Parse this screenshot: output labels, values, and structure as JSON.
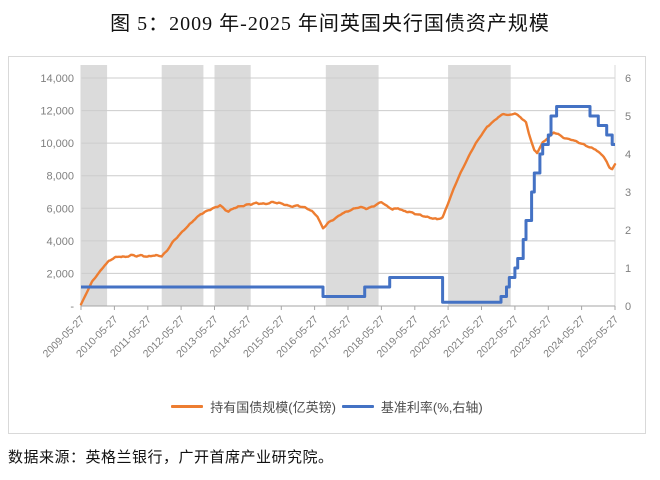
{
  "title": "图 5：2009 年-2025 年间英国央行国债资产规模",
  "source_note": "数据来源：英格兰银行，广开首席产业研究院。",
  "chart_data": {
    "type": "line",
    "title": "图 5：2009 年-2025 年间英国央行国债资产规模",
    "x_axis": {
      "unit": "months since 2009-05",
      "months_total": 192,
      "tick_every_months": 12,
      "labels": [
        "2009-05-27",
        "2010-05-27",
        "2011-05-27",
        "2012-05-27",
        "2013-05-27",
        "2014-05-27",
        "2015-05-27",
        "2016-05-27",
        "2017-05-27",
        "2018-05-27",
        "2019-05-27",
        "2020-05-27",
        "2021-05-27",
        "2022-05-27",
        "2023-05-27",
        "2024-05-27",
        "2025-05-27"
      ]
    },
    "left_axis": {
      "min": 0,
      "max": 14000,
      "major": 2000,
      "tick_labels": [
        "-",
        "2,000",
        "4,000",
        "6,000",
        "8,000",
        "10,000",
        "12,000",
        "14,000"
      ]
    },
    "right_axis": {
      "min": 0,
      "max": 6,
      "major": 1,
      "tick_labels": [
        "0",
        "1",
        "2",
        "3",
        "4",
        "5",
        "6"
      ]
    },
    "legend_position": "bottom",
    "grid": true,
    "legend": [
      {
        "label": "持有国债规模(亿英镑)",
        "color": "#ED7D31"
      },
      {
        "label": "基准利率(%,右轴)",
        "color": "#4472C4"
      }
    ],
    "shaded_bands_months": [
      [
        0,
        9.4
      ],
      [
        29,
        44
      ],
      [
        48,
        61
      ],
      [
        88,
        107
      ],
      [
        132,
        154.5
      ]
    ],
    "series": [
      {
        "name": "持有国债规模(亿英镑)",
        "axis": "left",
        "color": "#ED7D31",
        "style": "wiggly-line",
        "points": [
          [
            0,
            100
          ],
          [
            2,
            800
          ],
          [
            4,
            1500
          ],
          [
            6,
            1950
          ],
          [
            8,
            2400
          ],
          [
            10,
            2750
          ],
          [
            12,
            2950
          ],
          [
            14,
            3060
          ],
          [
            16,
            3020
          ],
          [
            18,
            3120
          ],
          [
            20,
            3050
          ],
          [
            22,
            3100
          ],
          [
            24,
            3040
          ],
          [
            26,
            3120
          ],
          [
            28,
            3060
          ],
          [
            29,
            3050
          ],
          [
            31,
            3400
          ],
          [
            33,
            3950
          ],
          [
            35,
            4300
          ],
          [
            37,
            4650
          ],
          [
            39,
            5000
          ],
          [
            41,
            5350
          ],
          [
            43,
            5650
          ],
          [
            45,
            5800
          ],
          [
            47,
            5950
          ],
          [
            49,
            6100
          ],
          [
            50,
            6200
          ],
          [
            52,
            5900
          ],
          [
            53,
            5800
          ],
          [
            55,
            6000
          ],
          [
            57,
            6100
          ],
          [
            60,
            6250
          ],
          [
            63,
            6300
          ],
          [
            66,
            6250
          ],
          [
            69,
            6400
          ],
          [
            72,
            6280
          ],
          [
            75,
            6120
          ],
          [
            78,
            6180
          ],
          [
            81,
            6000
          ],
          [
            83,
            5820
          ],
          [
            85,
            5500
          ],
          [
            87,
            4780
          ],
          [
            89,
            5120
          ],
          [
            91,
            5320
          ],
          [
            94,
            5700
          ],
          [
            97,
            5900
          ],
          [
            100,
            6050
          ],
          [
            103,
            6000
          ],
          [
            106,
            6200
          ],
          [
            108,
            6380
          ],
          [
            110,
            6120
          ],
          [
            112,
            5950
          ],
          [
            114,
            6020
          ],
          [
            116,
            5820
          ],
          [
            119,
            5720
          ],
          [
            122,
            5600
          ],
          [
            125,
            5420
          ],
          [
            128,
            5320
          ],
          [
            130,
            5450
          ],
          [
            132,
            6300
          ],
          [
            134,
            7200
          ],
          [
            136,
            8000
          ],
          [
            138,
            8700
          ],
          [
            140,
            9400
          ],
          [
            142,
            10000
          ],
          [
            144,
            10500
          ],
          [
            146,
            11000
          ],
          [
            148,
            11300
          ],
          [
            150,
            11600
          ],
          [
            152,
            11780
          ],
          [
            154,
            11700
          ],
          [
            156,
            11850
          ],
          [
            158,
            11600
          ],
          [
            160,
            11280
          ],
          [
            161,
            10600
          ],
          [
            162,
            10050
          ],
          [
            163,
            9550
          ],
          [
            164,
            9400
          ],
          [
            166,
            10050
          ],
          [
            168,
            10340
          ],
          [
            170,
            10650
          ],
          [
            172,
            10500
          ],
          [
            174,
            10300
          ],
          [
            176,
            10250
          ],
          [
            179,
            10020
          ],
          [
            182,
            9820
          ],
          [
            185,
            9620
          ],
          [
            188,
            9150
          ],
          [
            189,
            8850
          ],
          [
            190,
            8480
          ],
          [
            191,
            8420
          ],
          [
            192,
            8700
          ]
        ]
      },
      {
        "name": "基准利率(%,右轴)",
        "axis": "right",
        "color": "#4472C4",
        "style": "step-line",
        "points": [
          [
            0,
            0.5
          ],
          [
            87,
            0.25
          ],
          [
            102,
            0.5
          ],
          [
            111,
            0.75
          ],
          [
            130,
            0.1
          ],
          [
            151,
            0.25
          ],
          [
            153,
            0.5
          ],
          [
            154,
            0.75
          ],
          [
            156,
            1.0
          ],
          [
            157,
            1.25
          ],
          [
            159,
            1.75
          ],
          [
            160,
            2.25
          ],
          [
            162,
            3.0
          ],
          [
            163,
            3.5
          ],
          [
            165,
            4.0
          ],
          [
            166,
            4.25
          ],
          [
            168,
            4.5
          ],
          [
            169,
            5.0
          ],
          [
            171,
            5.25
          ],
          [
            183,
            5.0
          ],
          [
            186,
            4.75
          ],
          [
            189,
            4.5
          ],
          [
            191,
            4.25
          ]
        ]
      }
    ],
    "colors": {
      "band": "#dbdbdb",
      "gridline": "#cccccc",
      "x_axis_line": "#a6a6a6",
      "side_axis_line": "#d9d9d9",
      "tick_text": "#7f7f7f",
      "frame": "#d9d9d9"
    }
  }
}
